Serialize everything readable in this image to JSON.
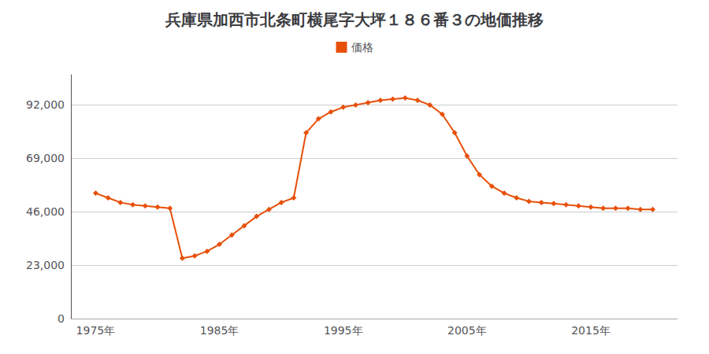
{
  "chart_data": {
    "type": "line",
    "title": "兵庫県加西市北条町横尾字大坪１８６番３の地価推移",
    "x": [
      1975,
      1976,
      1977,
      1978,
      1979,
      1980,
      1981,
      1982,
      1983,
      1984,
      1985,
      1986,
      1987,
      1988,
      1989,
      1990,
      1991,
      1992,
      1993,
      1994,
      1995,
      1996,
      1997,
      1998,
      1999,
      2000,
      2001,
      2002,
      2003,
      2004,
      2005,
      2006,
      2007,
      2008,
      2009,
      2010,
      2011,
      2012,
      2013,
      2014,
      2015,
      2016,
      2017,
      2018,
      2019,
      2020
    ],
    "series": [
      {
        "name": "価格",
        "color": "#E8500A",
        "marker": "diamond",
        "values": [
          54000,
          52000,
          50000,
          49000,
          48500,
          48000,
          47500,
          26000,
          27000,
          29000,
          32000,
          36000,
          40000,
          44000,
          47000,
          50000,
          52000,
          80000,
          86000,
          89000,
          91000,
          92000,
          93000,
          94000,
          94500,
          95000,
          94000,
          92000,
          88000,
          80000,
          70000,
          62000,
          57000,
          54000,
          52000,
          50500,
          50000,
          49500,
          49000,
          48500,
          48000,
          47500,
          47500,
          47500,
          47000,
          47000
        ]
      }
    ],
    "xlim": [
      1973,
      2022
    ],
    "xticks": [
      {
        "value": 1975,
        "label": "1975年"
      },
      {
        "value": 1985,
        "label": "1985年"
      },
      {
        "value": 1995,
        "label": "1995年"
      },
      {
        "value": 2005,
        "label": "2005年"
      },
      {
        "value": 2015,
        "label": "2015年"
      }
    ],
    "ylim": [
      0,
      105000
    ],
    "yticks": [
      0,
      {
        "value": 23000,
        "label": "23,000"
      },
      {
        "value": 46000,
        "label": "46,000"
      },
      {
        "value": 69000,
        "label": "69,000"
      },
      {
        "value": 92000,
        "label": "92,000"
      }
    ],
    "grid": true,
    "legend": "top"
  }
}
